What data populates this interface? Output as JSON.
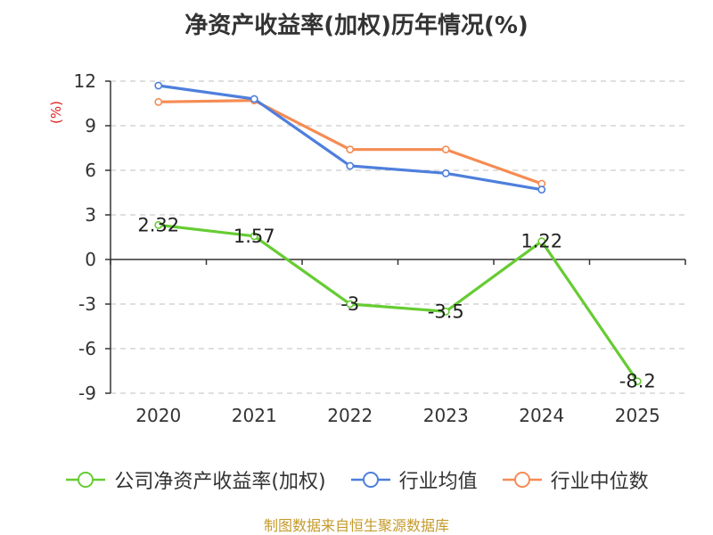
{
  "chart_data": {
    "type": "line",
    "title": "净资产收益率(加权)历年情况(%)",
    "ylabel": "(%)",
    "xlabel": "",
    "categories": [
      "2020",
      "2021",
      "2022",
      "2023",
      "2024",
      "2025"
    ],
    "ylim": [
      -9,
      12
    ],
    "yticks": [
      12,
      9,
      6,
      3,
      0,
      -3,
      -6,
      -9
    ],
    "grid": true,
    "legend_position": "bottom",
    "series": [
      {
        "name": "公司净资产收益率(加权)",
        "color": "#66cc33",
        "values": [
          2.32,
          1.57,
          -3,
          -3.5,
          1.22,
          -8.2
        ],
        "labels": [
          "2.32",
          "1.57",
          "-3",
          "-3.5",
          "1.22",
          "-8.2"
        ]
      },
      {
        "name": "行业均值",
        "color": "#4e7fdc",
        "values": [
          11.7,
          10.8,
          6.3,
          5.8,
          4.7,
          null
        ]
      },
      {
        "name": "行业中位数",
        "color": "#f58c54",
        "values": [
          10.6,
          10.7,
          7.4,
          7.4,
          5.1,
          null
        ]
      }
    ]
  },
  "ylabel_color": "#e02020",
  "source_note": "制图数据来自恒生聚源数据库"
}
